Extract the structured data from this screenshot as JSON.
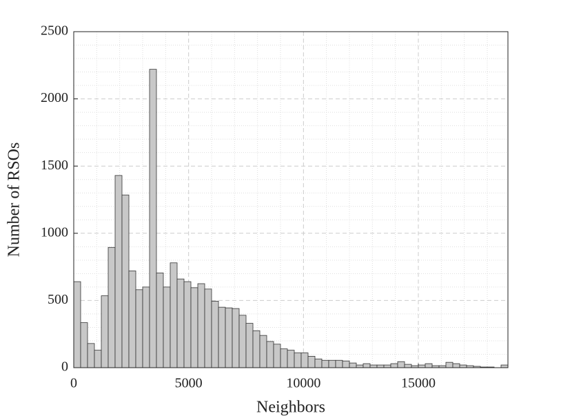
{
  "chart_data": {
    "type": "histogram",
    "x_label": "Neighbors",
    "y_label": "Number of RSOs",
    "bins": [
      0,
      300,
      600,
      900,
      1200,
      1500,
      1800,
      2100,
      2400,
      2700,
      3000,
      3300,
      3600,
      3900,
      4200,
      4500,
      4800,
      5100,
      5400,
      5700,
      6000,
      6300,
      6600,
      6900,
      7200,
      7500,
      7800,
      8100,
      8400,
      8700,
      9000,
      9300,
      9600,
      9900,
      10200,
      10500,
      10800,
      11100,
      11400,
      11700,
      12000,
      12300,
      12600,
      12900,
      13200,
      13500,
      13800,
      14100,
      14400,
      14700,
      15000,
      15300,
      15600,
      15900,
      16200,
      16500,
      16800,
      17100,
      17400,
      17700,
      18000,
      18300,
      18600,
      18900
    ],
    "values": [
      640,
      335,
      180,
      130,
      535,
      895,
      1430,
      1285,
      720,
      580,
      600,
      2220,
      705,
      600,
      780,
      660,
      640,
      595,
      625,
      585,
      495,
      450,
      445,
      440,
      390,
      330,
      275,
      240,
      195,
      175,
      140,
      130,
      110,
      110,
      85,
      65,
      55,
      55,
      55,
      50,
      35,
      20,
      30,
      20,
      20,
      20,
      30,
      45,
      25,
      15,
      20,
      30,
      15,
      15,
      40,
      30,
      20,
      15,
      10,
      5,
      5,
      0,
      20
    ],
    "color": "#c8c8c8",
    "xlim": [
      0,
      18900
    ],
    "xticks": [
      0,
      5000,
      10000,
      15000
    ],
    "ylim": [
      0,
      2500
    ],
    "yticks": [
      0,
      500,
      1000,
      1500,
      2000,
      2500
    ],
    "grid": true,
    "minor_grid": true
  }
}
